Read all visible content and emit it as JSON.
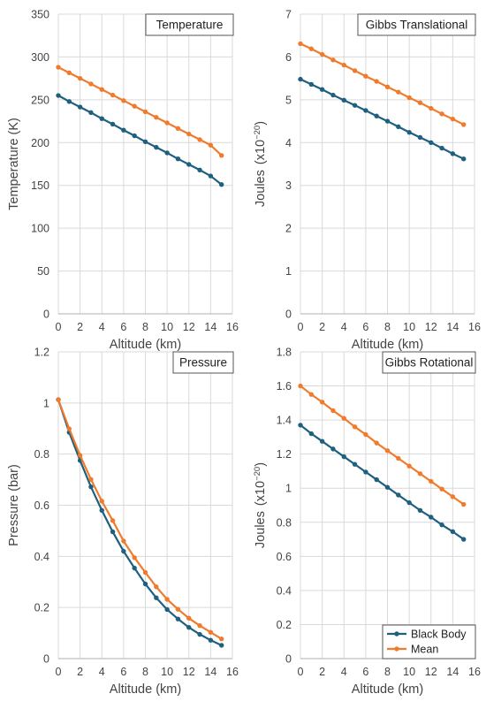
{
  "colors": {
    "black_body": "#1f5f7f",
    "mean": "#f07b2c",
    "grid": "#d9d9d9",
    "axis": "#bfbfbf"
  },
  "legend": {
    "entries": [
      "Black Body",
      "Mean"
    ]
  },
  "chart_data": [
    {
      "type": "line",
      "title": "Temperature",
      "xlabel": "Altitude (km)",
      "ylabel": "Temperature (K)",
      "x": [
        0,
        1,
        2,
        3,
        4,
        5,
        6,
        7,
        8,
        9,
        10,
        11,
        12,
        13,
        14,
        15
      ],
      "xlim": [
        0,
        16
      ],
      "xticks": [
        0,
        2,
        4,
        6,
        8,
        10,
        12,
        14,
        16
      ],
      "ylim": [
        0,
        350
      ],
      "yticks": [
        "0",
        "50",
        "100",
        "150",
        "200",
        "250",
        "300",
        "350"
      ],
      "grid": true,
      "series": [
        {
          "name": "Black Body",
          "values": [
            255,
            248,
            241.5,
            235,
            228,
            221.5,
            214.5,
            208,
            201,
            194.5,
            188,
            181,
            174.5,
            168,
            161,
            151
          ]
        },
        {
          "name": "Mean",
          "values": [
            288,
            281.5,
            275,
            268.5,
            262,
            255.5,
            249,
            242.5,
            236,
            229.5,
            223,
            216.5,
            210,
            203.5,
            197,
            185
          ]
        }
      ]
    },
    {
      "type": "line",
      "title": "Gibbs Translational",
      "xlabel": "Altitude (km)",
      "ylabel": "Joules",
      "ylabel_unit": "(x10",
      "ylabel_exp": "−20",
      "x": [
        0,
        1,
        2,
        3,
        4,
        5,
        6,
        7,
        8,
        9,
        10,
        11,
        12,
        13,
        14,
        15
      ],
      "xlim": [
        0,
        16
      ],
      "xticks": [
        0,
        2,
        4,
        6,
        8,
        10,
        12,
        14,
        16
      ],
      "ylim": [
        0,
        7
      ],
      "yticks": [
        "0",
        "1",
        "2",
        "3",
        "4",
        "5",
        "6",
        "7"
      ],
      "grid": true,
      "series": [
        {
          "name": "Black Body",
          "values": [
            5.48,
            5.36,
            5.24,
            5.11,
            4.99,
            4.87,
            4.75,
            4.62,
            4.5,
            4.37,
            4.24,
            4.12,
            4.0,
            3.87,
            3.74,
            3.62
          ]
        },
        {
          "name": "Mean",
          "values": [
            6.31,
            6.19,
            6.06,
            5.93,
            5.81,
            5.68,
            5.55,
            5.43,
            5.3,
            5.18,
            5.05,
            4.93,
            4.8,
            4.67,
            4.55,
            4.42
          ]
        }
      ]
    },
    {
      "type": "line",
      "title": "Pressure",
      "xlabel": "Altitude (km)",
      "ylabel": "Pressure (bar)",
      "x": [
        0,
        1,
        2,
        3,
        4,
        5,
        6,
        7,
        8,
        9,
        10,
        11,
        12,
        13,
        14,
        15
      ],
      "xlim": [
        0,
        16
      ],
      "xticks": [
        0,
        2,
        4,
        6,
        8,
        10,
        12,
        14,
        16
      ],
      "ylim": [
        0,
        1.2
      ],
      "yticks": [
        "0",
        "0.2",
        "0.4",
        "0.6",
        "0.8",
        "1",
        "1.2"
      ],
      "grid": true,
      "series": [
        {
          "name": "Black Body",
          "values": [
            1.013,
            0.885,
            0.775,
            0.672,
            0.58,
            0.496,
            0.42,
            0.354,
            0.292,
            0.238,
            0.192,
            0.155,
            0.122,
            0.095,
            0.072,
            0.052
          ]
        },
        {
          "name": "Mean",
          "values": [
            1.013,
            0.899,
            0.795,
            0.701,
            0.616,
            0.54,
            0.46,
            0.395,
            0.337,
            0.281,
            0.232,
            0.193,
            0.158,
            0.129,
            0.103,
            0.077
          ]
        }
      ]
    },
    {
      "type": "line",
      "title": "Gibbs Rotational",
      "xlabel": "Altitude (km)",
      "ylabel": "Joules",
      "ylabel_unit": "(x10",
      "ylabel_exp": "−20",
      "x": [
        0,
        1,
        2,
        3,
        4,
        5,
        6,
        7,
        8,
        9,
        10,
        11,
        12,
        13,
        14,
        15
      ],
      "xlim": [
        0,
        16
      ],
      "xticks": [
        0,
        2,
        4,
        6,
        8,
        10,
        12,
        14,
        16
      ],
      "ylim": [
        0,
        1.8
      ],
      "yticks": [
        "0",
        "0.2",
        "0.4",
        "0.6",
        "0.8",
        "1",
        "1.2",
        "1.4",
        "1.6",
        "1.8"
      ],
      "grid": true,
      "legend_position": "bottom-right",
      "series": [
        {
          "name": "Black Body",
          "values": [
            1.37,
            1.32,
            1.275,
            1.23,
            1.185,
            1.14,
            1.095,
            1.05,
            1.005,
            0.96,
            0.915,
            0.87,
            0.83,
            0.785,
            0.745,
            0.7
          ]
        },
        {
          "name": "Mean",
          "values": [
            1.6,
            1.55,
            1.505,
            1.455,
            1.41,
            1.36,
            1.315,
            1.265,
            1.22,
            1.175,
            1.13,
            1.085,
            1.04,
            0.995,
            0.95,
            0.905
          ]
        }
      ]
    }
  ]
}
